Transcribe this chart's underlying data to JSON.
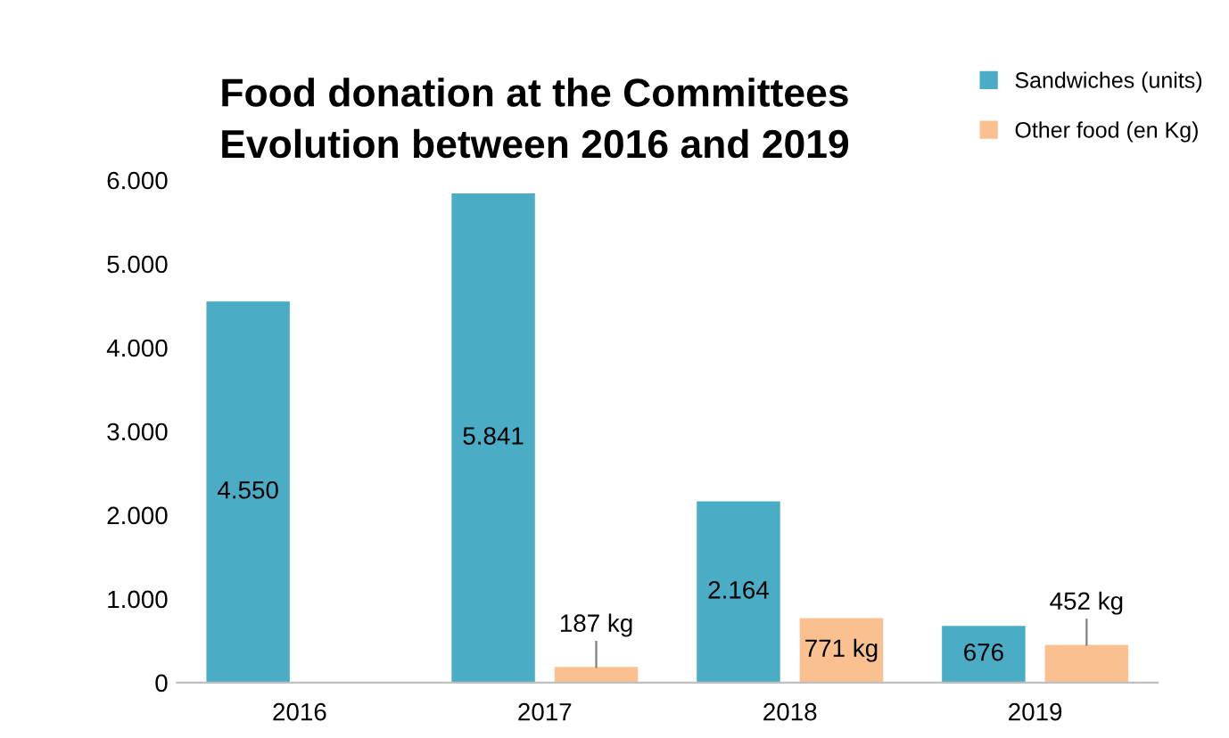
{
  "chart_data": {
    "type": "bar",
    "title": "Food donation at the Committees\nEvolution between 2016 and 2019",
    "categories": [
      "2016",
      "2017",
      "2018",
      "2019"
    ],
    "series": [
      {
        "name": "Sandwiches (units)",
        "color": "#4bacc6",
        "values": [
          4550,
          5841,
          2164,
          676
        ],
        "value_labels": [
          "4.550",
          "5.841",
          "2.164",
          "676"
        ]
      },
      {
        "name": "Other food (en Kg)",
        "color": "#fac090",
        "values": [
          null,
          187,
          771,
          452
        ],
        "value_labels": [
          null,
          "187 kg",
          "771 kg",
          "452 kg"
        ]
      }
    ],
    "ylim": [
      0,
      6000
    ],
    "yticks": [
      {
        "value": 0,
        "label": "0"
      },
      {
        "value": 1000,
        "label": "1.000"
      },
      {
        "value": 2000,
        "label": "2.000"
      },
      {
        "value": 3000,
        "label": "3.000"
      },
      {
        "value": 4000,
        "label": "4.000"
      },
      {
        "value": 5000,
        "label": "5.000"
      },
      {
        "value": 6000,
        "label": "6.000"
      }
    ],
    "grid": false,
    "legend": "top right"
  }
}
